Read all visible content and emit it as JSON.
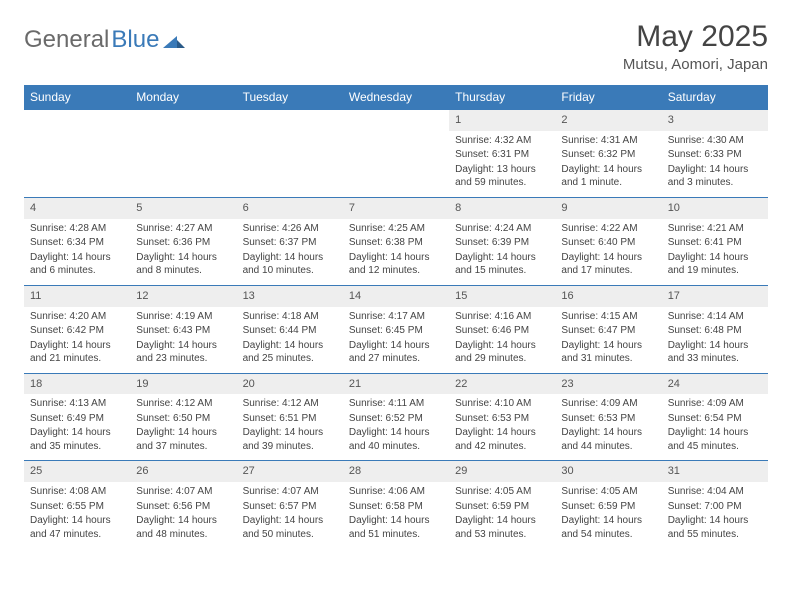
{
  "header": {
    "logo_general": "General",
    "logo_blue": "Blue",
    "month_title": "May 2025",
    "location": "Mutsu, Aomori, Japan"
  },
  "colors": {
    "header_bg": "#3a7ab8",
    "header_text": "#ffffff",
    "daynum_bg": "#eeeeee",
    "text": "#444444",
    "border": "#3a7ab8"
  },
  "weekdays": [
    "Sunday",
    "Monday",
    "Tuesday",
    "Wednesday",
    "Thursday",
    "Friday",
    "Saturday"
  ],
  "weeks": [
    [
      {
        "day": "",
        "sunrise": "",
        "sunset": "",
        "daylight": ""
      },
      {
        "day": "",
        "sunrise": "",
        "sunset": "",
        "daylight": ""
      },
      {
        "day": "",
        "sunrise": "",
        "sunset": "",
        "daylight": ""
      },
      {
        "day": "",
        "sunrise": "",
        "sunset": "",
        "daylight": ""
      },
      {
        "day": "1",
        "sunrise": "Sunrise: 4:32 AM",
        "sunset": "Sunset: 6:31 PM",
        "daylight": "Daylight: 13 hours and 59 minutes."
      },
      {
        "day": "2",
        "sunrise": "Sunrise: 4:31 AM",
        "sunset": "Sunset: 6:32 PM",
        "daylight": "Daylight: 14 hours and 1 minute."
      },
      {
        "day": "3",
        "sunrise": "Sunrise: 4:30 AM",
        "sunset": "Sunset: 6:33 PM",
        "daylight": "Daylight: 14 hours and 3 minutes."
      }
    ],
    [
      {
        "day": "4",
        "sunrise": "Sunrise: 4:28 AM",
        "sunset": "Sunset: 6:34 PM",
        "daylight": "Daylight: 14 hours and 6 minutes."
      },
      {
        "day": "5",
        "sunrise": "Sunrise: 4:27 AM",
        "sunset": "Sunset: 6:36 PM",
        "daylight": "Daylight: 14 hours and 8 minutes."
      },
      {
        "day": "6",
        "sunrise": "Sunrise: 4:26 AM",
        "sunset": "Sunset: 6:37 PM",
        "daylight": "Daylight: 14 hours and 10 minutes."
      },
      {
        "day": "7",
        "sunrise": "Sunrise: 4:25 AM",
        "sunset": "Sunset: 6:38 PM",
        "daylight": "Daylight: 14 hours and 12 minutes."
      },
      {
        "day": "8",
        "sunrise": "Sunrise: 4:24 AM",
        "sunset": "Sunset: 6:39 PM",
        "daylight": "Daylight: 14 hours and 15 minutes."
      },
      {
        "day": "9",
        "sunrise": "Sunrise: 4:22 AM",
        "sunset": "Sunset: 6:40 PM",
        "daylight": "Daylight: 14 hours and 17 minutes."
      },
      {
        "day": "10",
        "sunrise": "Sunrise: 4:21 AM",
        "sunset": "Sunset: 6:41 PM",
        "daylight": "Daylight: 14 hours and 19 minutes."
      }
    ],
    [
      {
        "day": "11",
        "sunrise": "Sunrise: 4:20 AM",
        "sunset": "Sunset: 6:42 PM",
        "daylight": "Daylight: 14 hours and 21 minutes."
      },
      {
        "day": "12",
        "sunrise": "Sunrise: 4:19 AM",
        "sunset": "Sunset: 6:43 PM",
        "daylight": "Daylight: 14 hours and 23 minutes."
      },
      {
        "day": "13",
        "sunrise": "Sunrise: 4:18 AM",
        "sunset": "Sunset: 6:44 PM",
        "daylight": "Daylight: 14 hours and 25 minutes."
      },
      {
        "day": "14",
        "sunrise": "Sunrise: 4:17 AM",
        "sunset": "Sunset: 6:45 PM",
        "daylight": "Daylight: 14 hours and 27 minutes."
      },
      {
        "day": "15",
        "sunrise": "Sunrise: 4:16 AM",
        "sunset": "Sunset: 6:46 PM",
        "daylight": "Daylight: 14 hours and 29 minutes."
      },
      {
        "day": "16",
        "sunrise": "Sunrise: 4:15 AM",
        "sunset": "Sunset: 6:47 PM",
        "daylight": "Daylight: 14 hours and 31 minutes."
      },
      {
        "day": "17",
        "sunrise": "Sunrise: 4:14 AM",
        "sunset": "Sunset: 6:48 PM",
        "daylight": "Daylight: 14 hours and 33 minutes."
      }
    ],
    [
      {
        "day": "18",
        "sunrise": "Sunrise: 4:13 AM",
        "sunset": "Sunset: 6:49 PM",
        "daylight": "Daylight: 14 hours and 35 minutes."
      },
      {
        "day": "19",
        "sunrise": "Sunrise: 4:12 AM",
        "sunset": "Sunset: 6:50 PM",
        "daylight": "Daylight: 14 hours and 37 minutes."
      },
      {
        "day": "20",
        "sunrise": "Sunrise: 4:12 AM",
        "sunset": "Sunset: 6:51 PM",
        "daylight": "Daylight: 14 hours and 39 minutes."
      },
      {
        "day": "21",
        "sunrise": "Sunrise: 4:11 AM",
        "sunset": "Sunset: 6:52 PM",
        "daylight": "Daylight: 14 hours and 40 minutes."
      },
      {
        "day": "22",
        "sunrise": "Sunrise: 4:10 AM",
        "sunset": "Sunset: 6:53 PM",
        "daylight": "Daylight: 14 hours and 42 minutes."
      },
      {
        "day": "23",
        "sunrise": "Sunrise: 4:09 AM",
        "sunset": "Sunset: 6:53 PM",
        "daylight": "Daylight: 14 hours and 44 minutes."
      },
      {
        "day": "24",
        "sunrise": "Sunrise: 4:09 AM",
        "sunset": "Sunset: 6:54 PM",
        "daylight": "Daylight: 14 hours and 45 minutes."
      }
    ],
    [
      {
        "day": "25",
        "sunrise": "Sunrise: 4:08 AM",
        "sunset": "Sunset: 6:55 PM",
        "daylight": "Daylight: 14 hours and 47 minutes."
      },
      {
        "day": "26",
        "sunrise": "Sunrise: 4:07 AM",
        "sunset": "Sunset: 6:56 PM",
        "daylight": "Daylight: 14 hours and 48 minutes."
      },
      {
        "day": "27",
        "sunrise": "Sunrise: 4:07 AM",
        "sunset": "Sunset: 6:57 PM",
        "daylight": "Daylight: 14 hours and 50 minutes."
      },
      {
        "day": "28",
        "sunrise": "Sunrise: 4:06 AM",
        "sunset": "Sunset: 6:58 PM",
        "daylight": "Daylight: 14 hours and 51 minutes."
      },
      {
        "day": "29",
        "sunrise": "Sunrise: 4:05 AM",
        "sunset": "Sunset: 6:59 PM",
        "daylight": "Daylight: 14 hours and 53 minutes."
      },
      {
        "day": "30",
        "sunrise": "Sunrise: 4:05 AM",
        "sunset": "Sunset: 6:59 PM",
        "daylight": "Daylight: 14 hours and 54 minutes."
      },
      {
        "day": "31",
        "sunrise": "Sunrise: 4:04 AM",
        "sunset": "Sunset: 7:00 PM",
        "daylight": "Daylight: 14 hours and 55 minutes."
      }
    ]
  ]
}
